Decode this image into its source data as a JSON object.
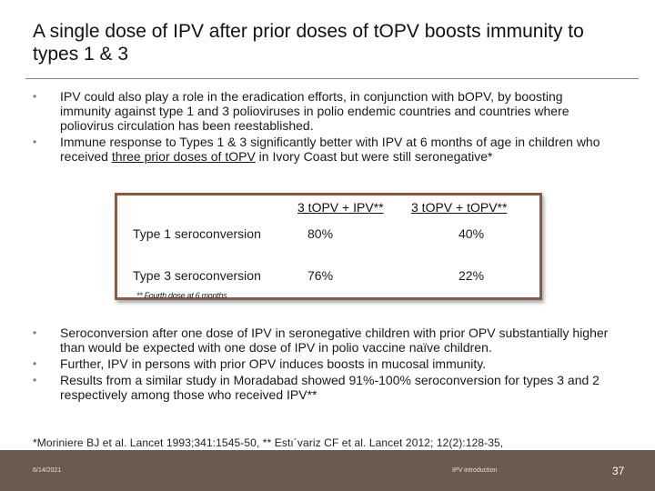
{
  "slide": {
    "title": "A single dose of IPV after prior doses of tOPV boosts immunity to types 1 & 3",
    "top_bullets": [
      {
        "text": "IPV could also play a role in the eradication efforts, in conjunction with bOPV, by boosting immunity against type 1 and 3 polioviruses in polio endemic countries and countries where poliovirus circulation has been reestablished."
      },
      {
        "pre": "Immune response to Types 1 & 3 significantly better with IPV at 6 months of age in children who received ",
        "underlined": "three prior doses of tOPV",
        "post": " in Ivory Coast but were still seronegative*"
      }
    ],
    "table": {
      "headers": [
        "3 tOPV + IPV**",
        "3 tOPV + tOPV**"
      ],
      "rows": [
        {
          "label": "Type 1 seroconversion",
          "v1": "80%",
          "v2": "40%"
        },
        {
          "label": "Type 3 seroconversion",
          "v1": "76%",
          "v2": "22%"
        }
      ],
      "footnote": "** Fourth dose at 6 months"
    },
    "bottom_bullets": [
      {
        "text": "Seroconversion after one dose of IPV in seronegative children with prior OPV substantially higher than would be expected with one dose of IPV in polio vaccine naïve children."
      },
      {
        "text": "Further, IPV in persons with prior OPV induces boosts in mucosal immunity."
      },
      {
        "text": "Results from a similar study in Moradabad showed 91%-100% seroconversion for types 3 and 2 respectively among those who received IPV**"
      }
    ],
    "reference": "*Moriniere BJ  et al.  Lancet 1993;341:1545-50, ** Estı´variz CF et al. Lancet 2012; 12(2):128-35,",
    "footer": {
      "date": "6/14/2021",
      "center": "IPV introduction",
      "page": "37"
    },
    "colors": {
      "footer_bar": "#6b5a4e",
      "table_border": "#8a5a45",
      "bullet": "#7a7a7a"
    }
  }
}
